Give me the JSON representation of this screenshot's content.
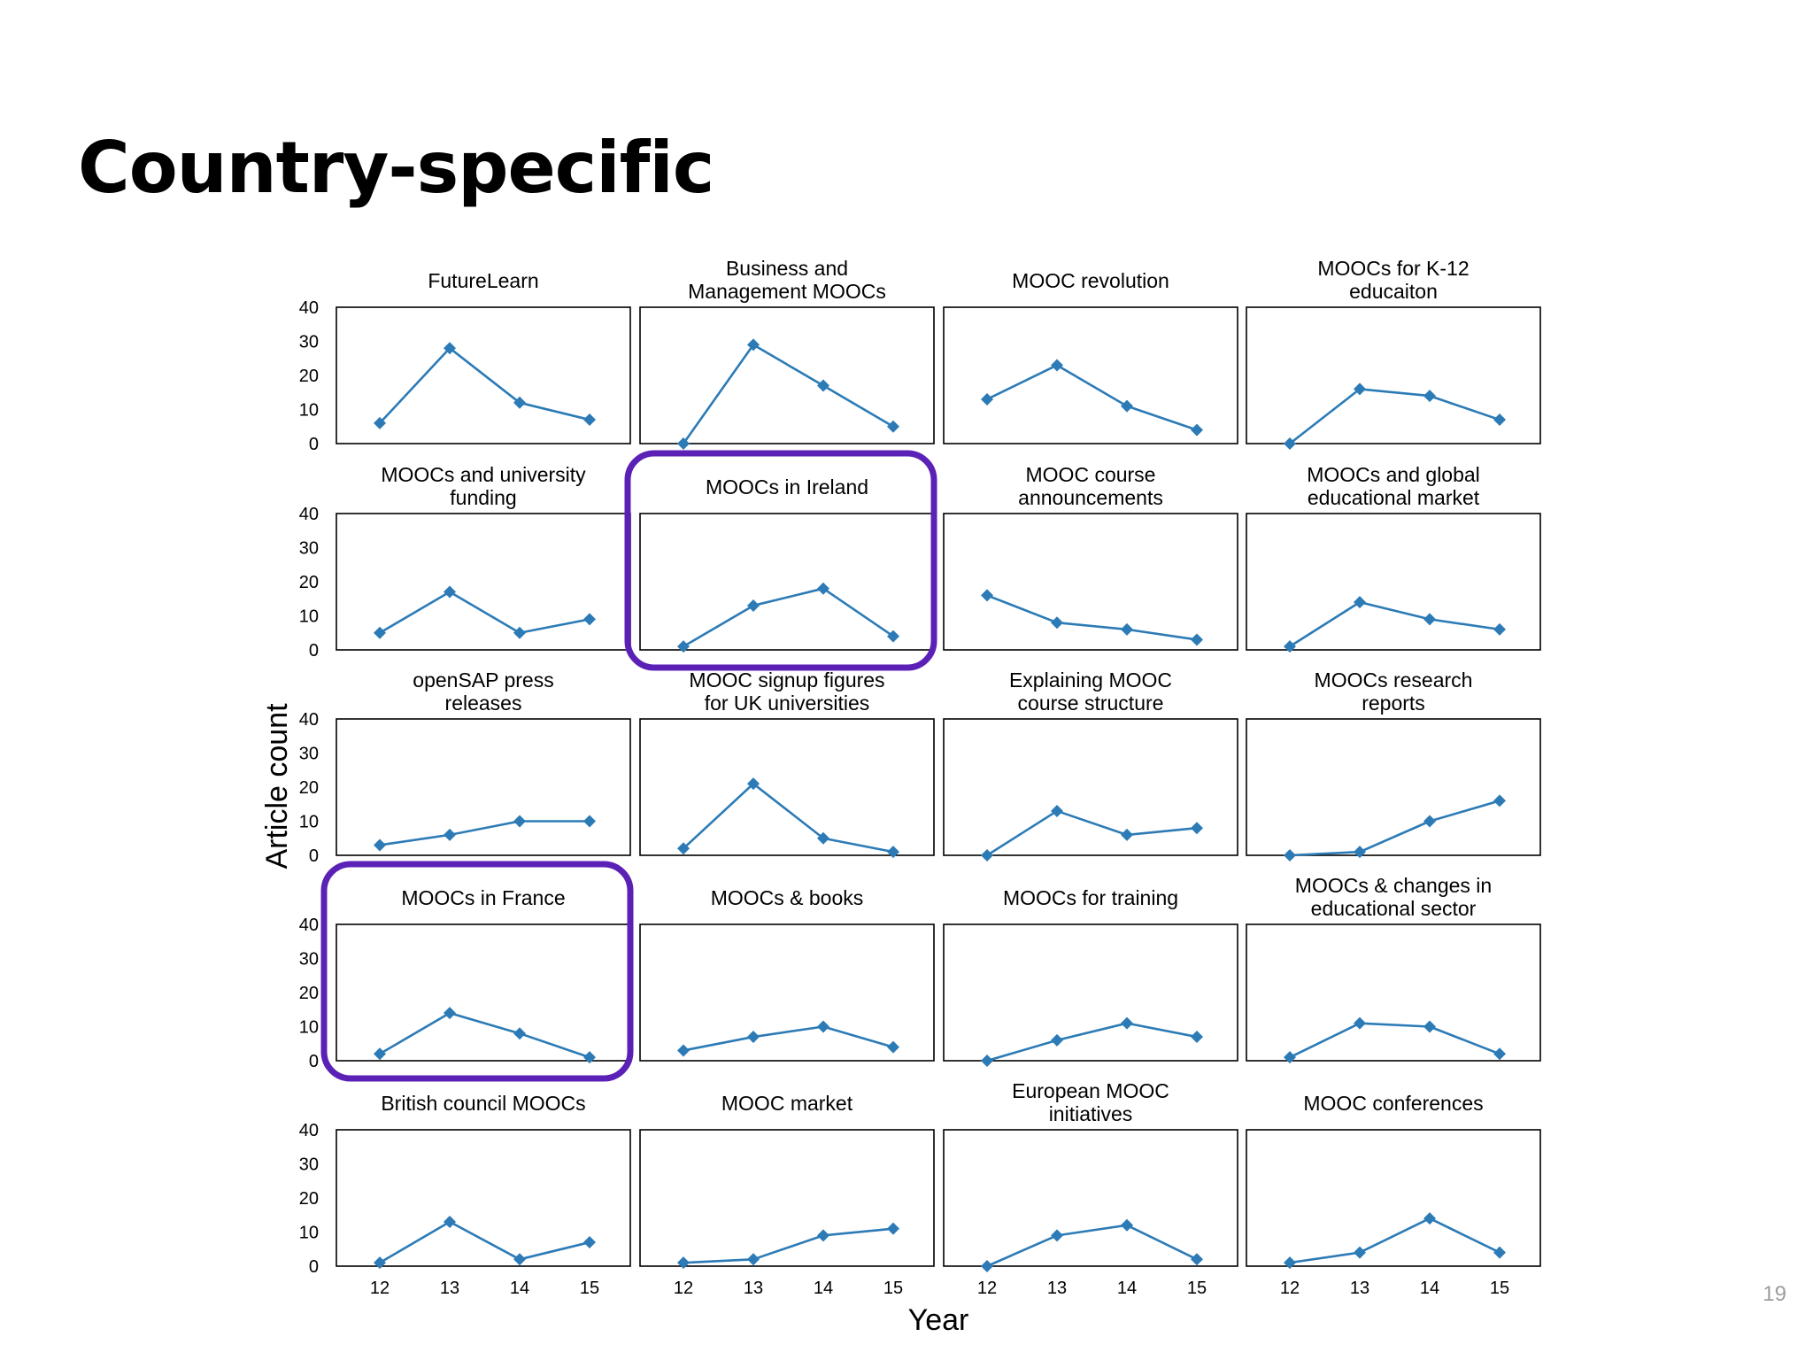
{
  "slide": {
    "title": "Country-specific",
    "page_number": "19"
  },
  "colors": {
    "series": "#2c7bb6",
    "highlight": "#5b21b6",
    "axis": "#000000"
  },
  "chart_data": {
    "type": "line",
    "layout": "small-multiples-5x4",
    "xlabel": "Year",
    "ylabel": "Article count",
    "x": [
      "12",
      "13",
      "14",
      "15"
    ],
    "ylim": [
      0,
      40
    ],
    "yticks": [
      "0",
      "10",
      "20",
      "30",
      "40"
    ],
    "panels": [
      {
        "title": [
          "FutureLearn"
        ],
        "values": [
          6,
          28,
          12,
          7
        ],
        "highlighted": false
      },
      {
        "title": [
          "Business and",
          "Management MOOCs"
        ],
        "values": [
          0,
          29,
          17,
          5
        ],
        "highlighted": false
      },
      {
        "title": [
          "MOOC revolution"
        ],
        "values": [
          13,
          23,
          11,
          4
        ],
        "highlighted": false
      },
      {
        "title": [
          "MOOCs for K-12",
          "educaiton"
        ],
        "values": [
          0,
          16,
          14,
          7
        ],
        "highlighted": false
      },
      {
        "title": [
          "MOOCs and university",
          "funding"
        ],
        "values": [
          5,
          17,
          5,
          9
        ],
        "highlighted": false
      },
      {
        "title": [
          "MOOCs in Ireland"
        ],
        "values": [
          1,
          13,
          18,
          4
        ],
        "highlighted": true
      },
      {
        "title": [
          "MOOC course",
          "announcements"
        ],
        "values": [
          16,
          8,
          6,
          3
        ],
        "highlighted": false
      },
      {
        "title": [
          "MOOCs and global",
          "educational market"
        ],
        "values": [
          1,
          14,
          9,
          6
        ],
        "highlighted": false
      },
      {
        "title": [
          "openSAP press",
          "releases"
        ],
        "values": [
          3,
          6,
          10,
          10
        ],
        "highlighted": false
      },
      {
        "title": [
          "MOOC signup figures",
          "for UK universities"
        ],
        "values": [
          2,
          21,
          5,
          1
        ],
        "highlighted": false
      },
      {
        "title": [
          "Explaining MOOC",
          "course structure"
        ],
        "values": [
          0,
          13,
          6,
          8
        ],
        "highlighted": false
      },
      {
        "title": [
          "MOOCs research",
          "reports"
        ],
        "values": [
          0,
          1,
          10,
          16
        ],
        "highlighted": false
      },
      {
        "title": [
          "MOOCs in France"
        ],
        "values": [
          2,
          14,
          8,
          1
        ],
        "highlighted": true
      },
      {
        "title": [
          "MOOCs & books"
        ],
        "values": [
          3,
          7,
          10,
          4
        ],
        "highlighted": false
      },
      {
        "title": [
          "MOOCs for training"
        ],
        "values": [
          0,
          6,
          11,
          7
        ],
        "highlighted": false
      },
      {
        "title": [
          "MOOCs & changes in",
          "educational sector"
        ],
        "values": [
          1,
          11,
          10,
          2
        ],
        "highlighted": false
      },
      {
        "title": [
          "British council MOOCs"
        ],
        "values": [
          1,
          13,
          2,
          7
        ],
        "highlighted": false
      },
      {
        "title": [
          "MOOC market"
        ],
        "values": [
          1,
          2,
          9,
          11
        ],
        "highlighted": false
      },
      {
        "title": [
          "European MOOC",
          "initiatives"
        ],
        "values": [
          0,
          9,
          12,
          2
        ],
        "highlighted": false
      },
      {
        "title": [
          "MOOC conferences"
        ],
        "values": [
          1,
          4,
          14,
          4
        ],
        "highlighted": false
      }
    ]
  }
}
